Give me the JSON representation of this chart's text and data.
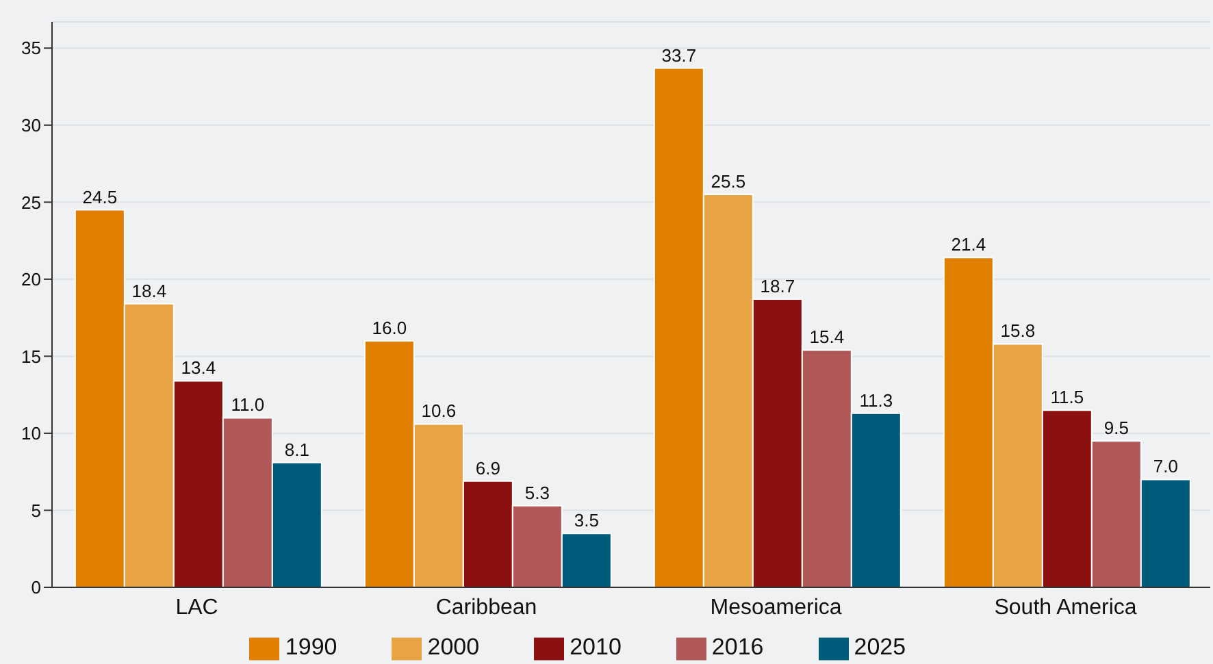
{
  "chart_data": {
    "type": "bar",
    "categories": [
      "LAC",
      "Caribbean",
      "Mesoamerica",
      "South America"
    ],
    "series": [
      {
        "name": "1990",
        "color": "#e07f00",
        "values": [
          24.5,
          16,
          33.7,
          21.4
        ],
        "value_labels": [
          "24.5",
          "16.0",
          "33.7",
          "21.4"
        ]
      },
      {
        "name": "2000",
        "color": "#e8a444",
        "values": [
          18.4,
          10.6,
          25.5,
          15.8
        ],
        "value_labels": [
          "18.4",
          "10.6",
          "25.5",
          "15.8"
        ]
      },
      {
        "name": "2010",
        "color": "#8b1010",
        "values": [
          13.4,
          6.9,
          18.7,
          11.5
        ],
        "value_labels": [
          "13.4",
          "6.9",
          "18.7",
          "11.5"
        ]
      },
      {
        "name": "2016",
        "color": "#b05858",
        "values": [
          11,
          5.3,
          15.4,
          9.5
        ],
        "value_labels": [
          "11.0",
          "5.3",
          "15.4",
          "9.5"
        ]
      },
      {
        "name": "2025",
        "color": "#005a7a",
        "values": [
          8.1,
          3.5,
          11.3,
          7
        ],
        "value_labels": [
          "8.1",
          "3.5",
          "11.3",
          "7.0"
        ]
      }
    ],
    "ylim": [
      0,
      36.7
    ],
    "yticks": [
      0,
      5,
      10,
      15,
      20,
      25,
      30,
      35
    ],
    "grid": "y",
    "legend": "bottom"
  }
}
